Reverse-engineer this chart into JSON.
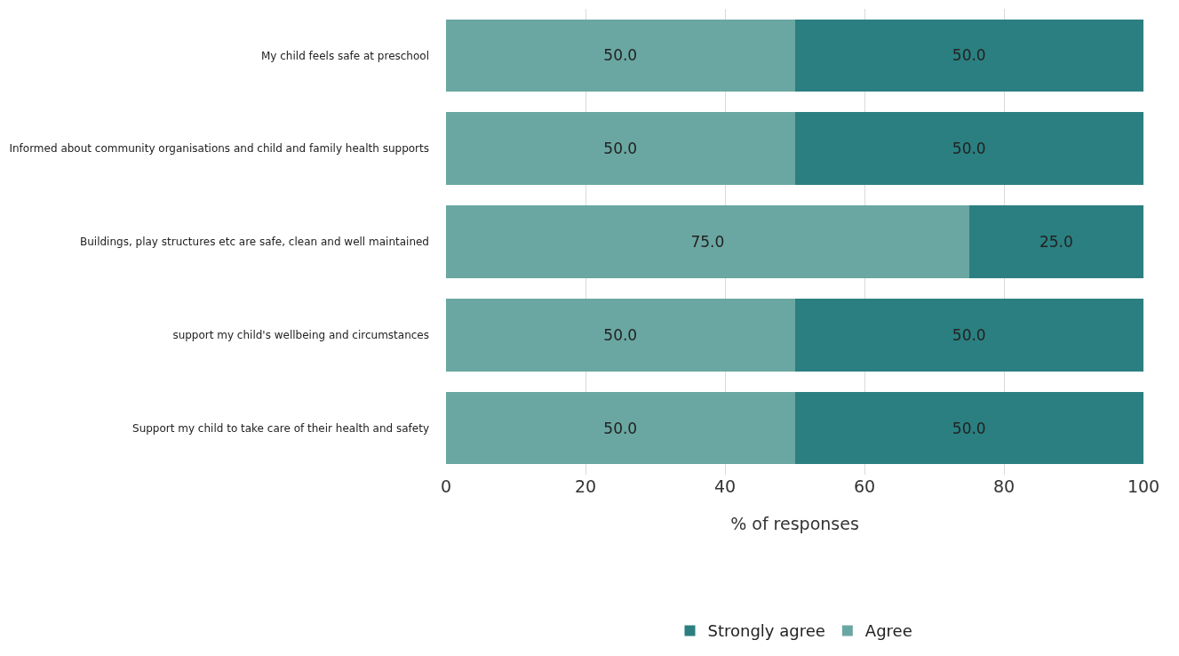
{
  "chart_data": {
    "type": "bar",
    "orientation": "horizontal",
    "stacked": true,
    "xlabel": "% of responses",
    "categories": [
      "My child feels safe at preschool",
      "Informed about community organisations and child and family health supports",
      "Buildings, play structures etc are safe, clean and well maintained",
      "support my child's wellbeing and circumstances",
      "Support my child to take care of their health and safety"
    ],
    "series": [
      {
        "name": "Agree",
        "color": "#6aa7a2",
        "values": [
          50,
          50,
          75,
          50,
          50
        ],
        "value_labels": [
          "50.0",
          "50.0",
          "75.0",
          "50.0",
          "50.0"
        ]
      },
      {
        "name": "Strongly agree",
        "color": "#2b7f80",
        "values": [
          50,
          50,
          25,
          50,
          50
        ],
        "value_labels": [
          "50.0",
          "50.0",
          "25.0",
          "50.0",
          "50.0"
        ]
      }
    ],
    "xlim": [
      0,
      100
    ],
    "xticks": [
      0,
      20,
      40,
      60,
      80,
      100
    ],
    "grid": "x",
    "legend": "bottom"
  }
}
